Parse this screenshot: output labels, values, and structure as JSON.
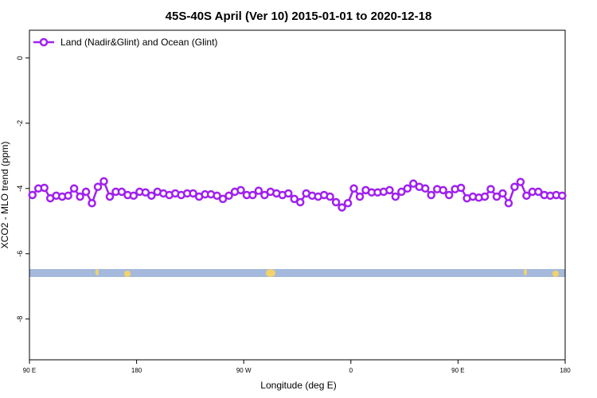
{
  "chart_data": {
    "type": "line",
    "title": "45S-40S April (Ver 10)   2015-01-01 to 2020-12-18",
    "x_label": "Longitude (deg E)",
    "y_label": "XCO2 - MLO trend (ppm)",
    "xlim": [
      90,
      540
    ],
    "xticks": [
      {
        "value": 90,
        "label": "90 E"
      },
      180,
      {
        "value": 270,
        "label": "90 W"
      },
      {
        "value": 360,
        "label": "0"
      },
      {
        "value": 450,
        "label": "90 E"
      },
      {
        "value": 540,
        "label": "180"
      }
    ],
    "ylim": [
      -9.25,
      0.85
    ],
    "yticks": [
      0,
      -2,
      -4,
      -6,
      -8
    ],
    "legend_position": "top-left",
    "x": [
      92.5,
      97.5,
      102.5,
      107.5,
      112.5,
      117.5,
      122.5,
      127.5,
      132.5,
      137.5,
      142.5,
      147.5,
      152.5,
      157.5,
      162.5,
      167.5,
      172.5,
      177.5,
      182.5,
      187.5,
      192.5,
      197.5,
      202.5,
      207.5,
      212.5,
      217.5,
      222.5,
      227.5,
      232.5,
      237.5,
      242.5,
      247.5,
      252.5,
      257.5,
      262.5,
      267.5,
      272.5,
      277.5,
      282.5,
      287.5,
      292.5,
      297.5,
      302.5,
      307.5,
      312.5,
      317.5,
      322.5,
      327.5,
      332.5,
      337.5,
      342.5,
      347.5,
      352.5,
      357.5,
      362.5,
      367.5,
      372.5,
      377.5,
      382.5,
      387.5,
      392.5,
      397.5,
      402.5,
      407.5,
      412.5,
      417.5,
      422.5,
      427.5,
      432.5,
      437.5,
      442.5,
      447.5,
      452.5,
      457.5,
      462.5,
      467.5,
      472.5,
      477.5,
      482.5,
      487.5,
      492.5,
      497.5,
      502.5,
      507.5,
      512.5,
      517.5,
      522.5,
      527.5,
      532.5,
      537.5
    ],
    "series": [
      {
        "name": "Land (Nadir&Glint) and Ocean (Glint)",
        "color": "#a020f0",
        "values": [
          -4.2,
          -4.0,
          -3.98,
          -4.3,
          -4.22,
          -4.25,
          -4.22,
          -4.0,
          -4.25,
          -4.1,
          -4.45,
          -3.95,
          -3.78,
          -4.25,
          -4.1,
          -4.1,
          -4.2,
          -4.22,
          -4.1,
          -4.12,
          -4.22,
          -4.1,
          -4.15,
          -4.2,
          -4.15,
          -4.2,
          -4.15,
          -4.15,
          -4.25,
          -4.18,
          -4.18,
          -4.22,
          -4.32,
          -4.22,
          -4.1,
          -4.05,
          -4.2,
          -4.2,
          -4.07,
          -4.2,
          -4.1,
          -4.15,
          -4.2,
          -4.15,
          -4.32,
          -4.42,
          -4.15,
          -4.22,
          -4.25,
          -4.2,
          -4.25,
          -4.42,
          -4.58,
          -4.45,
          -4.0,
          -4.25,
          -4.05,
          -4.12,
          -4.12,
          -4.1,
          -4.05,
          -4.25,
          -4.1,
          -4.0,
          -3.85,
          -3.95,
          -4.0,
          -4.2,
          -4.02,
          -4.05,
          -4.2,
          -4.02,
          -3.98,
          -4.3,
          -4.25,
          -4.28,
          -4.25,
          -4.02,
          -4.25,
          -4.15,
          -4.45,
          -3.95,
          -3.8,
          -4.22,
          -4.1,
          -4.1,
          -4.2,
          -4.22,
          -4.2,
          -4.22
        ]
      }
    ]
  }
}
